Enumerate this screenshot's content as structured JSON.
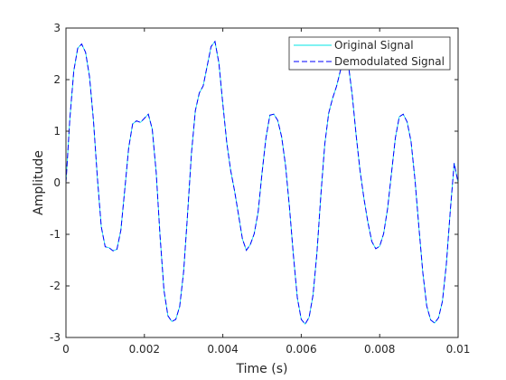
{
  "chart_data": {
    "type": "line",
    "xlabel": "Time (s)",
    "ylabel": "Amplitude",
    "xlim": [
      0,
      0.01
    ],
    "ylim": [
      -3,
      3
    ],
    "grid": false,
    "legend_position": "top-right",
    "xticks": [
      0,
      0.002,
      0.004,
      0.006,
      0.008,
      0.01
    ],
    "xtick_labels": [
      "0",
      "0.002",
      "0.004",
      "0.006",
      "0.008",
      "0.01"
    ],
    "yticks": [
      3,
      2,
      1,
      0,
      -1,
      -2,
      -3
    ],
    "ytick_labels": [
      "3",
      "2",
      "1",
      "0",
      "-1",
      "-2",
      "-3"
    ],
    "series": [
      {
        "name": "Original Signal",
        "color": "#00e5e5",
        "style": "solid",
        "x": [
          0,
          0.0001,
          0.0002,
          0.0003,
          0.0004,
          0.0005,
          0.0006,
          0.0007,
          0.0008,
          0.0009,
          0.001,
          0.0011,
          0.0012,
          0.0013,
          0.0014,
          0.0015,
          0.0016,
          0.0017,
          0.0018,
          0.0019,
          0.002,
          0.0021,
          0.0022,
          0.0023,
          0.0024,
          0.0025,
          0.0026,
          0.0027,
          0.0028,
          0.0029,
          0.003,
          0.0031,
          0.0032,
          0.0033,
          0.0034,
          0.0035,
          0.0036,
          0.0037,
          0.0038,
          0.0039,
          0.004,
          0.0041,
          0.0042,
          0.0043,
          0.0044,
          0.0045,
          0.0046,
          0.0047,
          0.0048,
          0.0049,
          0.005,
          0.0051,
          0.0052,
          0.0053,
          0.0054,
          0.0055,
          0.0056,
          0.0057,
          0.0058,
          0.0059,
          0.006,
          0.0061,
          0.0062,
          0.0063,
          0.0064,
          0.0065,
          0.0066,
          0.0067,
          0.0068,
          0.0069,
          0.007,
          0.0071,
          0.0072,
          0.0073,
          0.0074,
          0.0075,
          0.0076,
          0.0077,
          0.0078,
          0.0079,
          0.008,
          0.0081,
          0.0082,
          0.0083,
          0.0084,
          0.0085,
          0.0086,
          0.0087,
          0.0088,
          0.0089,
          0.009,
          0.0091,
          0.0092,
          0.0093,
          0.0094,
          0.0095,
          0.0096,
          0.0097,
          0.0098,
          0.0099,
          0.01
        ],
        "y": [
          0,
          1.25,
          2.17,
          2.61,
          2.69,
          2.53,
          2.06,
          1.22,
          0.11,
          -0.85,
          -1.24,
          -1.26,
          -1.32,
          -1.29,
          -0.92,
          -0.13,
          0.68,
          1.14,
          1.2,
          1.17,
          1.25,
          1.33,
          1.04,
          0.21,
          -1.04,
          -2.09,
          -2.58,
          -2.69,
          -2.65,
          -2.4,
          -1.73,
          -0.62,
          0.57,
          1.4,
          1.74,
          1.88,
          2.26,
          2.64,
          2.74,
          2.32,
          1.53,
          0.78,
          0.24,
          -0.16,
          -0.62,
          -1.09,
          -1.31,
          -1.2,
          -0.99,
          -0.57,
          0.19,
          0.87,
          1.31,
          1.33,
          1.21,
          0.89,
          0.33,
          -0.48,
          -1.41,
          -2.23,
          -2.65,
          -2.74,
          -2.61,
          -2.18,
          -1.36,
          -0.24,
          0.75,
          1.35,
          1.64,
          1.87,
          2.18,
          2.44,
          2.3,
          1.7,
          0.92,
          0.23,
          -0.31,
          -0.77,
          -1.14,
          -1.28,
          -1.23,
          -0.99,
          -0.51,
          0.18,
          0.87,
          1.28,
          1.33,
          1.18,
          0.8,
          0.06,
          -0.86,
          -1.74,
          -2.39,
          -2.66,
          -2.72,
          -2.62,
          -2.3,
          -1.58,
          -0.55,
          0.38,
          0.0
        ],
        "line_width": 0.8
      },
      {
        "name": "Demodulated Signal",
        "color": "#0000ff",
        "style": "dashed",
        "x": [
          0,
          0.0001,
          0.0002,
          0.0003,
          0.0004,
          0.0005,
          0.0006,
          0.0007,
          0.0008,
          0.0009,
          0.001,
          0.0011,
          0.0012,
          0.0013,
          0.0014,
          0.0015,
          0.0016,
          0.0017,
          0.0018,
          0.0019,
          0.002,
          0.0021,
          0.0022,
          0.0023,
          0.0024,
          0.0025,
          0.0026,
          0.0027,
          0.0028,
          0.0029,
          0.003,
          0.0031,
          0.0032,
          0.0033,
          0.0034,
          0.0035,
          0.0036,
          0.0037,
          0.0038,
          0.0039,
          0.004,
          0.0041,
          0.0042,
          0.0043,
          0.0044,
          0.0045,
          0.0046,
          0.0047,
          0.0048,
          0.0049,
          0.005,
          0.0051,
          0.0052,
          0.0053,
          0.0054,
          0.0055,
          0.0056,
          0.0057,
          0.0058,
          0.0059,
          0.006,
          0.0061,
          0.0062,
          0.0063,
          0.0064,
          0.0065,
          0.0066,
          0.0067,
          0.0068,
          0.0069,
          0.007,
          0.0071,
          0.0072,
          0.0073,
          0.0074,
          0.0075,
          0.0076,
          0.0077,
          0.0078,
          0.0079,
          0.008,
          0.0081,
          0.0082,
          0.0083,
          0.0084,
          0.0085,
          0.0086,
          0.0087,
          0.0088,
          0.0089,
          0.009,
          0.0091,
          0.0092,
          0.0093,
          0.0094,
          0.0095,
          0.0096,
          0.0097,
          0.0098,
          0.0099,
          0.01
        ],
        "y": [
          0,
          1.25,
          2.17,
          2.61,
          2.69,
          2.53,
          2.06,
          1.22,
          0.11,
          -0.85,
          -1.24,
          -1.26,
          -1.32,
          -1.29,
          -0.92,
          -0.13,
          0.68,
          1.14,
          1.2,
          1.17,
          1.25,
          1.33,
          1.04,
          0.21,
          -1.04,
          -2.09,
          -2.58,
          -2.69,
          -2.65,
          -2.4,
          -1.73,
          -0.62,
          0.57,
          1.4,
          1.74,
          1.88,
          2.26,
          2.64,
          2.74,
          2.32,
          1.53,
          0.78,
          0.24,
          -0.16,
          -0.62,
          -1.09,
          -1.31,
          -1.2,
          -0.99,
          -0.57,
          0.19,
          0.87,
          1.31,
          1.33,
          1.21,
          0.89,
          0.33,
          -0.48,
          -1.41,
          -2.23,
          -2.65,
          -2.74,
          -2.61,
          -2.18,
          -1.36,
          -0.24,
          0.75,
          1.35,
          1.64,
          1.87,
          2.18,
          2.44,
          2.3,
          1.7,
          0.92,
          0.23,
          -0.31,
          -0.77,
          -1.14,
          -1.28,
          -1.23,
          -0.99,
          -0.51,
          0.18,
          0.87,
          1.28,
          1.33,
          1.18,
          0.8,
          0.06,
          -0.86,
          -1.74,
          -2.39,
          -2.66,
          -2.72,
          -2.62,
          -2.3,
          -1.58,
          -0.55,
          0.38,
          0.0
        ],
        "line_width": 1.0
      }
    ]
  }
}
